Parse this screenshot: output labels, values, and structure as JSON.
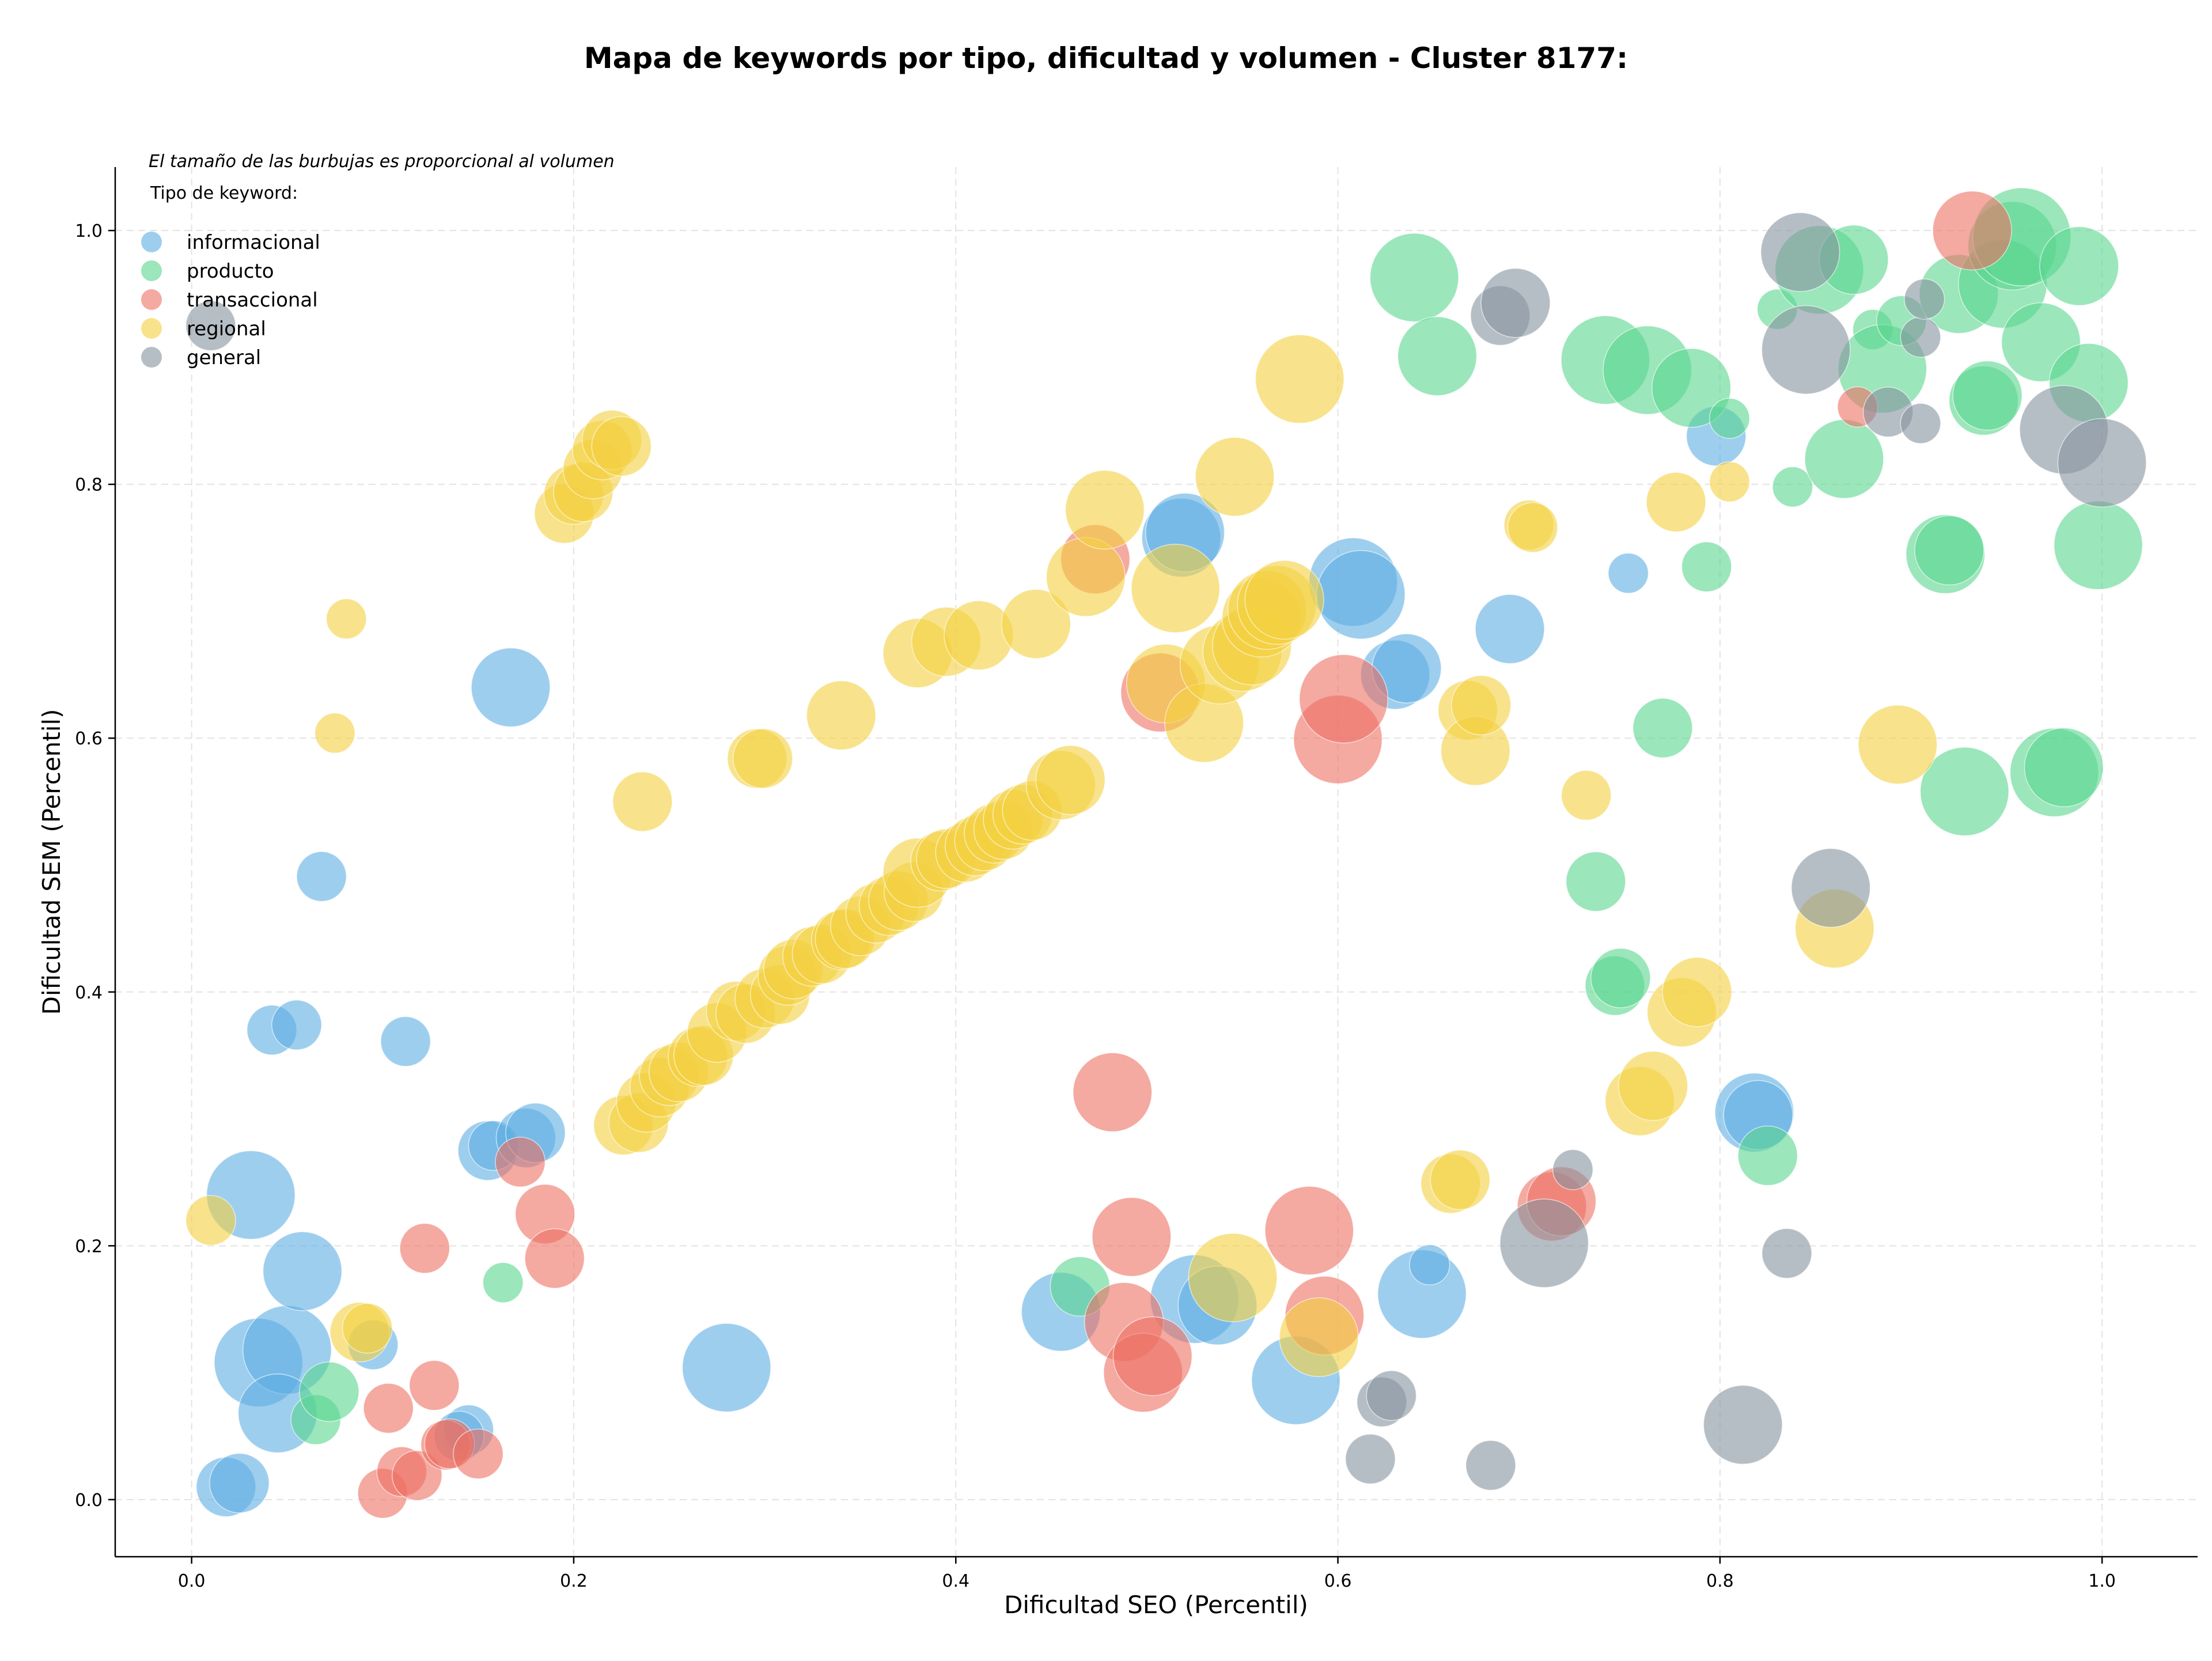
{
  "chart_data": {
    "type": "scatter",
    "title": "Mapa de keywords por tipo, dificultad y volumen - Cluster 8177:",
    "xlabel": "Dificultad SEO (Percentil)",
    "ylabel": "Dificultad SEM (Percentil)",
    "xlim": [
      -0.04,
      1.05
    ],
    "ylim": [
      -0.045,
      1.05
    ],
    "xticks": [
      0.0,
      0.2,
      0.4,
      0.6,
      0.8,
      1.0
    ],
    "yticks": [
      0.0,
      0.2,
      0.4,
      0.6,
      0.8,
      1.0
    ],
    "xtick_labels": [
      "0.0",
      "0.2",
      "0.4",
      "0.6",
      "0.8",
      "1.0"
    ],
    "ytick_labels": [
      "0.0",
      "0.2",
      "0.4",
      "0.6",
      "0.8",
      "1.0"
    ],
    "grid": true,
    "note": "El tamaño de las burbujas es proporcional al volumen",
    "legend_title": "Tipo de keyword:",
    "legend_position": "top-left",
    "series": [
      {
        "name": "informacional",
        "color": "#5dade2",
        "points": [
          [
            0.031,
            0.24,
            7
          ],
          [
            0.018,
            0.01,
            4
          ],
          [
            0.025,
            0.013,
            4
          ],
          [
            0.035,
            0.108,
            7
          ],
          [
            0.05,
            0.118,
            7
          ],
          [
            0.045,
            0.068,
            6
          ],
          [
            0.058,
            0.18,
            6
          ],
          [
            0.042,
            0.37,
            3
          ],
          [
            0.055,
            0.374,
            3
          ],
          [
            0.068,
            0.491,
            3
          ],
          [
            0.095,
            0.122,
            3
          ],
          [
            0.112,
            0.361,
            3
          ],
          [
            0.155,
            0.275,
            4
          ],
          [
            0.158,
            0.279,
            3
          ],
          [
            0.175,
            0.285,
            4
          ],
          [
            0.18,
            0.289,
            4
          ],
          [
            0.145,
            0.055,
            3
          ],
          [
            0.14,
            0.05,
            3
          ],
          [
            0.167,
            0.64,
            6
          ],
          [
            0.28,
            0.104,
            7
          ],
          [
            0.455,
            0.148,
            6
          ],
          [
            0.525,
            0.158,
            7
          ],
          [
            0.537,
            0.153,
            6
          ],
          [
            0.518,
            0.758,
            6
          ],
          [
            0.52,
            0.762,
            6
          ],
          [
            0.578,
            0.094,
            7
          ],
          [
            0.608,
            0.723,
            7
          ],
          [
            0.612,
            0.713,
            7
          ],
          [
            0.63,
            0.65,
            5
          ],
          [
            0.636,
            0.655,
            5
          ],
          [
            0.644,
            0.162,
            7
          ],
          [
            0.648,
            0.185,
            2
          ],
          [
            0.69,
            0.686,
            5
          ],
          [
            0.752,
            0.73,
            2
          ],
          [
            0.798,
            0.838,
            4
          ],
          [
            0.818,
            0.305,
            6
          ],
          [
            0.82,
            0.303,
            5
          ]
        ]
      },
      {
        "name": "producto",
        "color": "#58d68d",
        "points": [
          [
            0.065,
            0.063,
            3
          ],
          [
            0.072,
            0.085,
            4
          ],
          [
            0.163,
            0.171,
            2
          ],
          [
            0.465,
            0.168,
            4
          ],
          [
            0.64,
            0.963,
            7
          ],
          [
            0.652,
            0.901,
            6
          ],
          [
            0.735,
            0.487,
            4
          ],
          [
            0.745,
            0.405,
            4
          ],
          [
            0.748,
            0.411,
            4
          ],
          [
            0.74,
            0.898,
            7
          ],
          [
            0.762,
            0.89,
            7
          ],
          [
            0.77,
            0.608,
            4
          ],
          [
            0.785,
            0.876,
            6
          ],
          [
            0.793,
            0.735,
            3
          ],
          [
            0.805,
            0.852,
            2
          ],
          [
            0.825,
            0.271,
            4
          ],
          [
            0.83,
            0.938,
            2
          ],
          [
            0.838,
            0.798,
            2
          ],
          [
            0.852,
            0.969,
            7
          ],
          [
            0.865,
            0.82,
            6
          ],
          [
            0.87,
            0.977,
            5
          ],
          [
            0.88,
            0.922,
            2
          ],
          [
            0.885,
            0.891,
            7
          ],
          [
            0.895,
            0.929,
            3
          ],
          [
            0.918,
            0.745,
            6
          ],
          [
            0.92,
            0.748,
            5
          ],
          [
            0.925,
            0.95,
            6
          ],
          [
            0.928,
            0.558,
            7
          ],
          [
            0.938,
            0.866,
            5
          ],
          [
            0.94,
            0.87,
            5
          ],
          [
            0.948,
            0.958,
            7
          ],
          [
            0.953,
            0.988,
            7
          ],
          [
            0.958,
            0.995,
            8
          ],
          [
            0.968,
            0.912,
            6
          ],
          [
            0.975,
            0.573,
            7
          ],
          [
            0.98,
            0.577,
            6
          ],
          [
            0.988,
            0.972,
            6
          ],
          [
            0.993,
            0.88,
            6
          ],
          [
            0.998,
            0.752,
            7
          ]
        ]
      },
      {
        "name": "transaccional",
        "color": "#ec7063",
        "points": [
          [
            0.1,
            0.005,
            3
          ],
          [
            0.103,
            0.072,
            3
          ],
          [
            0.11,
            0.022,
            3
          ],
          [
            0.118,
            0.019,
            3
          ],
          [
            0.122,
            0.198,
            3
          ],
          [
            0.127,
            0.09,
            3
          ],
          [
            0.133,
            0.043,
            3
          ],
          [
            0.135,
            0.044,
            3
          ],
          [
            0.15,
            0.036,
            3
          ],
          [
            0.172,
            0.266,
            3
          ],
          [
            0.185,
            0.225,
            4
          ],
          [
            0.19,
            0.19,
            4
          ],
          [
            0.473,
            0.741,
            5
          ],
          [
            0.482,
            0.321,
            6
          ],
          [
            0.488,
            0.14,
            6
          ],
          [
            0.492,
            0.207,
            6
          ],
          [
            0.498,
            0.1,
            6
          ],
          [
            0.503,
            0.113,
            6
          ],
          [
            0.507,
            0.636,
            6
          ],
          [
            0.585,
            0.212,
            7
          ],
          [
            0.593,
            0.145,
            6
          ],
          [
            0.6,
            0.599,
            7
          ],
          [
            0.603,
            0.631,
            7
          ],
          [
            0.712,
            0.231,
            5
          ],
          [
            0.717,
            0.235,
            5
          ],
          [
            0.872,
            0.861,
            2
          ],
          [
            0.932,
            1.0,
            6
          ]
        ]
      },
      {
        "name": "regional",
        "color": "#f4d03f",
        "points": [
          [
            0.01,
            0.22,
            3
          ],
          [
            0.075,
            0.604,
            2
          ],
          [
            0.081,
            0.694,
            2
          ],
          [
            0.088,
            0.132,
            4
          ],
          [
            0.092,
            0.135,
            3
          ],
          [
            0.195,
            0.777,
            4
          ],
          [
            0.2,
            0.792,
            4
          ],
          [
            0.205,
            0.794,
            4
          ],
          [
            0.21,
            0.812,
            4
          ],
          [
            0.215,
            0.827,
            4
          ],
          [
            0.22,
            0.835,
            4
          ],
          [
            0.225,
            0.83,
            4
          ],
          [
            0.226,
            0.295,
            4
          ],
          [
            0.234,
            0.297,
            4
          ],
          [
            0.236,
            0.55,
            4
          ],
          [
            0.238,
            0.313,
            4
          ],
          [
            0.245,
            0.325,
            4
          ],
          [
            0.25,
            0.334,
            4
          ],
          [
            0.255,
            0.337,
            4
          ],
          [
            0.265,
            0.349,
            4
          ],
          [
            0.268,
            0.35,
            4
          ],
          [
            0.275,
            0.368,
            4
          ],
          [
            0.285,
            0.385,
            4
          ],
          [
            0.29,
            0.383,
            4
          ],
          [
            0.296,
            0.584,
            4
          ],
          [
            0.299,
            0.584,
            4
          ],
          [
            0.3,
            0.395,
            4
          ],
          [
            0.308,
            0.398,
            4
          ],
          [
            0.312,
            0.413,
            4
          ],
          [
            0.315,
            0.418,
            4
          ],
          [
            0.325,
            0.428,
            4
          ],
          [
            0.33,
            0.43,
            4
          ],
          [
            0.34,
            0.441,
            4
          ],
          [
            0.342,
            0.442,
            4
          ],
          [
            0.34,
            0.618,
            5
          ],
          [
            0.35,
            0.452,
            4
          ],
          [
            0.358,
            0.462,
            4
          ],
          [
            0.365,
            0.468,
            4
          ],
          [
            0.37,
            0.472,
            4
          ],
          [
            0.378,
            0.479,
            4
          ],
          [
            0.38,
            0.494,
            5
          ],
          [
            0.38,
            0.667,
            5
          ],
          [
            0.392,
            0.503,
            4
          ],
          [
            0.395,
            0.505,
            4
          ],
          [
            0.395,
            0.676,
            5
          ],
          [
            0.405,
            0.51,
            4
          ],
          [
            0.41,
            0.515,
            4
          ],
          [
            0.412,
            0.681,
            5
          ],
          [
            0.415,
            0.519,
            4
          ],
          [
            0.42,
            0.525,
            4
          ],
          [
            0.425,
            0.528,
            4
          ],
          [
            0.43,
            0.536,
            4
          ],
          [
            0.435,
            0.54,
            4
          ],
          [
            0.44,
            0.543,
            4
          ],
          [
            0.442,
            0.69,
            5
          ],
          [
            0.455,
            0.563,
            5
          ],
          [
            0.46,
            0.567,
            5
          ],
          [
            0.468,
            0.727,
            6
          ],
          [
            0.478,
            0.78,
            6
          ],
          [
            0.51,
            0.643,
            6
          ],
          [
            0.515,
            0.718,
            7
          ],
          [
            0.53,
            0.612,
            6
          ],
          [
            0.538,
            0.658,
            6
          ],
          [
            0.546,
            0.806,
            6
          ],
          [
            0.55,
            0.668,
            6
          ],
          [
            0.555,
            0.673,
            6
          ],
          [
            0.56,
            0.695,
            6
          ],
          [
            0.563,
            0.701,
            6
          ],
          [
            0.568,
            0.705,
            6
          ],
          [
            0.572,
            0.709,
            6
          ],
          [
            0.545,
            0.175,
            7
          ],
          [
            0.59,
            0.128,
            6
          ],
          [
            0.58,
            0.883,
            7
          ],
          [
            0.659,
            0.249,
            4
          ],
          [
            0.664,
            0.252,
            4
          ],
          [
            0.668,
            0.622,
            4
          ],
          [
            0.672,
            0.59,
            5
          ],
          [
            0.675,
            0.626,
            4
          ],
          [
            0.7,
            0.768,
            3
          ],
          [
            0.702,
            0.766,
            3
          ],
          [
            0.73,
            0.555,
            3
          ],
          [
            0.758,
            0.314,
            5
          ],
          [
            0.765,
            0.326,
            5
          ],
          [
            0.777,
            0.786,
            4
          ],
          [
            0.78,
            0.384,
            5
          ],
          [
            0.788,
            0.4,
            5
          ],
          [
            0.805,
            0.802,
            2
          ],
          [
            0.86,
            0.45,
            6
          ],
          [
            0.893,
            0.595,
            6
          ]
        ]
      },
      {
        "name": "general",
        "color": "#85929e",
        "points": [
          [
            0.01,
            0.925,
            3
          ],
          [
            0.617,
            0.032,
            3
          ],
          [
            0.623,
            0.077,
            3
          ],
          [
            0.628,
            0.082,
            3
          ],
          [
            0.68,
            0.027,
            3
          ],
          [
            0.685,
            0.933,
            4
          ],
          [
            0.693,
            0.943,
            5
          ],
          [
            0.708,
            0.202,
            7
          ],
          [
            0.723,
            0.26,
            2
          ],
          [
            0.812,
            0.059,
            6
          ],
          [
            0.835,
            0.194,
            3
          ],
          [
            0.842,
            0.983,
            6
          ],
          [
            0.845,
            0.906,
            7
          ],
          [
            0.858,
            0.482,
            6
          ],
          [
            0.888,
            0.857,
            3
          ],
          [
            0.905,
            0.848,
            2
          ],
          [
            0.905,
            0.916,
            2
          ],
          [
            0.907,
            0.946,
            2
          ],
          [
            0.98,
            0.843,
            7
          ],
          [
            1.0,
            0.817,
            7
          ]
        ]
      }
    ]
  }
}
